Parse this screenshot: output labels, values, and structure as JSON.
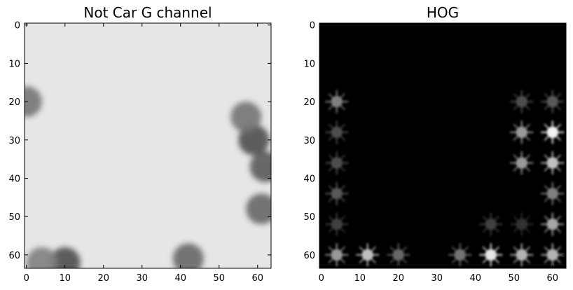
{
  "chart_data": [
    {
      "type": "heatmap",
      "title": "Not Car G channel",
      "colormap": "gray",
      "xlim": [
        0,
        63
      ],
      "ylim": [
        63,
        0
      ],
      "x_ticks": [
        0,
        10,
        20,
        30,
        40,
        50,
        60
      ],
      "y_ticks": [
        0,
        10,
        20,
        30,
        40,
        50,
        60
      ],
      "x_tick_labels": [
        "0",
        "10",
        "20",
        "30",
        "40",
        "50",
        "60"
      ],
      "y_tick_labels": [
        "0",
        "10",
        "20",
        "30",
        "40",
        "50",
        "60"
      ],
      "background_intensity": 0.9,
      "dark_regions": [
        {
          "x": 59,
          "y": 30,
          "intensity": 0.3
        },
        {
          "x": 57,
          "y": 24,
          "intensity": 0.45
        },
        {
          "x": 62,
          "y": 37,
          "intensity": 0.35
        },
        {
          "x": 61,
          "y": 48,
          "intensity": 0.4
        },
        {
          "x": 0,
          "y": 20,
          "intensity": 0.45
        },
        {
          "x": 10,
          "y": 62,
          "intensity": 0.3
        },
        {
          "x": 42,
          "y": 61,
          "intensity": 0.4
        },
        {
          "x": 4,
          "y": 62,
          "intensity": 0.5
        }
      ]
    },
    {
      "type": "heatmap",
      "title": "HOG",
      "colormap": "gray",
      "xlim": [
        0,
        63
      ],
      "ylim": [
        63,
        0
      ],
      "x_ticks": [
        0,
        10,
        20,
        30,
        40,
        50,
        60
      ],
      "y_ticks": [
        0,
        10,
        20,
        30,
        40,
        50,
        60
      ],
      "x_tick_labels": [
        "0",
        "10",
        "20",
        "30",
        "40",
        "50",
        "60"
      ],
      "y_tick_labels": [
        "0",
        "10",
        "20",
        "30",
        "40",
        "50",
        "60"
      ],
      "background_intensity": 0.0,
      "cell_size": 8,
      "bright_cells": [
        {
          "x": 4,
          "y": 20,
          "intensity": 0.5
        },
        {
          "x": 4,
          "y": 28,
          "intensity": 0.3
        },
        {
          "x": 4,
          "y": 36,
          "intensity": 0.3
        },
        {
          "x": 4,
          "y": 44,
          "intensity": 0.35
        },
        {
          "x": 4,
          "y": 52,
          "intensity": 0.25
        },
        {
          "x": 4,
          "y": 60,
          "intensity": 0.6
        },
        {
          "x": 12,
          "y": 60,
          "intensity": 0.75
        },
        {
          "x": 20,
          "y": 60,
          "intensity": 0.4
        },
        {
          "x": 36,
          "y": 60,
          "intensity": 0.45
        },
        {
          "x": 44,
          "y": 60,
          "intensity": 0.9
        },
        {
          "x": 52,
          "y": 60,
          "intensity": 0.7
        },
        {
          "x": 60,
          "y": 60,
          "intensity": 0.7
        },
        {
          "x": 52,
          "y": 20,
          "intensity": 0.3
        },
        {
          "x": 60,
          "y": 20,
          "intensity": 0.35
        },
        {
          "x": 52,
          "y": 28,
          "intensity": 0.6
        },
        {
          "x": 60,
          "y": 28,
          "intensity": 0.95
        },
        {
          "x": 52,
          "y": 36,
          "intensity": 0.6
        },
        {
          "x": 60,
          "y": 36,
          "intensity": 0.75
        },
        {
          "x": 60,
          "y": 44,
          "intensity": 0.5
        },
        {
          "x": 60,
          "y": 52,
          "intensity": 0.65
        },
        {
          "x": 44,
          "y": 52,
          "intensity": 0.25
        },
        {
          "x": 52,
          "y": 52,
          "intensity": 0.2
        }
      ]
    }
  ]
}
